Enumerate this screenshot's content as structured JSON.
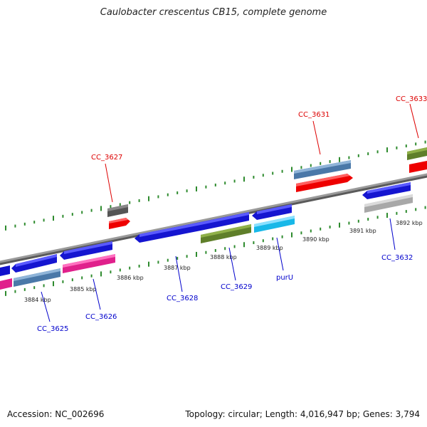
{
  "title": "Caulobacter crescentus CB15, complete genome",
  "accession": "Accession: NC_002696",
  "stats": "Topology: circular; Length: 4,016,947 bp; Genes: 3,794",
  "colors": {
    "label_red": "#dd0000",
    "label_blue": "#0000cc",
    "tick_green": "#2e8b2e",
    "backbone": "#808080"
  },
  "kbp_labels": [
    {
      "text": "3884 kbp"
    },
    {
      "text": "3885 kbp"
    },
    {
      "text": "3886 kbp"
    },
    {
      "text": "3887 kbp"
    },
    {
      "text": "3888 kbp"
    },
    {
      "text": "3889 kbp"
    },
    {
      "text": "3890 kbp"
    },
    {
      "text": "3891 kbp"
    },
    {
      "text": "3892 kbp"
    }
  ],
  "gene_labels": [
    {
      "text": "CC_3625",
      "strand": "minus"
    },
    {
      "text": "CC_3626",
      "strand": "minus"
    },
    {
      "text": "CC_3627",
      "strand": "plus"
    },
    {
      "text": "CC_3628",
      "strand": "minus"
    },
    {
      "text": "CC_3629",
      "strand": "minus"
    },
    {
      "text": "purU",
      "strand": "minus"
    },
    {
      "text": "CC_3631",
      "strand": "plus"
    },
    {
      "text": "CC_3632",
      "strand": "minus"
    },
    {
      "text": "CC_3633",
      "strand": "plus"
    }
  ]
}
